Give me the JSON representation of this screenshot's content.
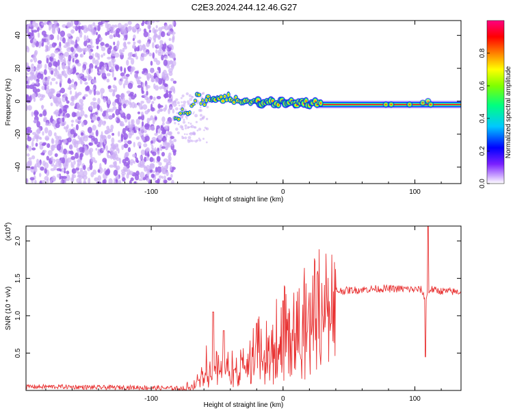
{
  "title": "C2E3.2024.244.12.46.G27",
  "colors": {
    "snr_line": "#e83030",
    "noise_dot": "#9a60e8",
    "noise_dot_light": "#cdb0f5"
  },
  "chart_data": [
    {
      "type": "heatmap",
      "name": "spectrogram",
      "xlabel": "Height of straight line (km)",
      "ylabel": "Frequency (Hz)",
      "xlim": [
        -195,
        135
      ],
      "ylim": [
        -50,
        49
      ],
      "x_ticks": [
        -100,
        0,
        100
      ],
      "y_ticks": [
        -40,
        -20,
        0,
        20,
        40
      ],
      "colorbar": {
        "label": "Normalized spectral amplitude",
        "range": [
          0,
          1
        ],
        "ticks": [
          0.0,
          0.2,
          0.4,
          0.6,
          0.8
        ],
        "tick_labels": [
          "0.0",
          "0.2",
          "0.4",
          "0.6",
          "0.8"
        ],
        "colormap": [
          "#ffffff",
          "#c8a0ff",
          "#6a00ff",
          "#0000ff",
          "#00c8ff",
          "#00ff80",
          "#80ff00",
          "#ffff00",
          "#ff8000",
          "#ff0000",
          "#ff0080"
        ]
      },
      "noise_region_x": [
        -195,
        -82
      ],
      "signal_center_frequency": [
        [
          -82,
          -9
        ],
        [
          -75,
          -7
        ],
        [
          -70,
          -4
        ],
        [
          -65,
          2
        ],
        [
          -60,
          0
        ],
        [
          -50,
          0
        ],
        [
          -40,
          1
        ],
        [
          -30,
          0
        ],
        [
          -20,
          -1
        ],
        [
          -10,
          -1
        ],
        [
          0,
          -1
        ],
        [
          20,
          -1
        ],
        [
          40,
          -2
        ],
        [
          60,
          -2
        ],
        [
          80,
          -2
        ],
        [
          100,
          -2
        ],
        [
          110,
          -1
        ],
        [
          135,
          -2
        ]
      ]
    },
    {
      "type": "line",
      "name": "snr",
      "xlabel": "Height of straight line (km)",
      "ylabel": "SNR (10 * v/v)",
      "y_multiplier_label": "(x10",
      "y_multiplier_exponent": "4",
      "xlim": [
        -195,
        135
      ],
      "ylim": [
        0,
        2.2
      ],
      "x_ticks": [
        -100,
        0,
        100
      ],
      "y_ticks": [
        0.5,
        1.0,
        1.5,
        2.0
      ],
      "y_tick_labels": [
        "0.5",
        "1.0",
        "1.5",
        "2.0"
      ],
      "series": [
        {
          "name": "",
          "x": [
            -195,
            -170,
            -140,
            -110,
            -85,
            -75,
            -70,
            -65,
            -62,
            -58,
            -55,
            -50,
            -45,
            -40,
            -35,
            -30,
            -25,
            -20,
            -15,
            -10,
            -5,
            0,
            5,
            10,
            15,
            20,
            25,
            30,
            35,
            40,
            50,
            60,
            70,
            80,
            90,
            100,
            105,
            108,
            110,
            112,
            115,
            120,
            130,
            135
          ],
          "y": [
            0.05,
            0.05,
            0.04,
            0.04,
            0.03,
            0.03,
            0.06,
            0.15,
            0.25,
            0.45,
            0.3,
            0.35,
            0.25,
            0.4,
            0.3,
            0.45,
            0.55,
            0.62,
            0.68,
            0.75,
            0.85,
            0.92,
            0.95,
            1.0,
            1.05,
            1.12,
            1.2,
            1.28,
            1.32,
            1.33,
            1.34,
            1.35,
            1.36,
            1.36,
            1.36,
            1.35,
            1.35,
            1.2,
            1.3,
            1.36,
            1.34,
            1.33,
            1.32,
            1.32
          ]
        }
      ],
      "spikes": [
        [
          -53,
          1.05
        ],
        [
          -45,
          0.8
        ],
        [
          -20,
          0.9
        ],
        [
          0,
          1.2
        ],
        [
          108,
          0.45
        ],
        [
          110,
          2.2
        ]
      ]
    }
  ]
}
